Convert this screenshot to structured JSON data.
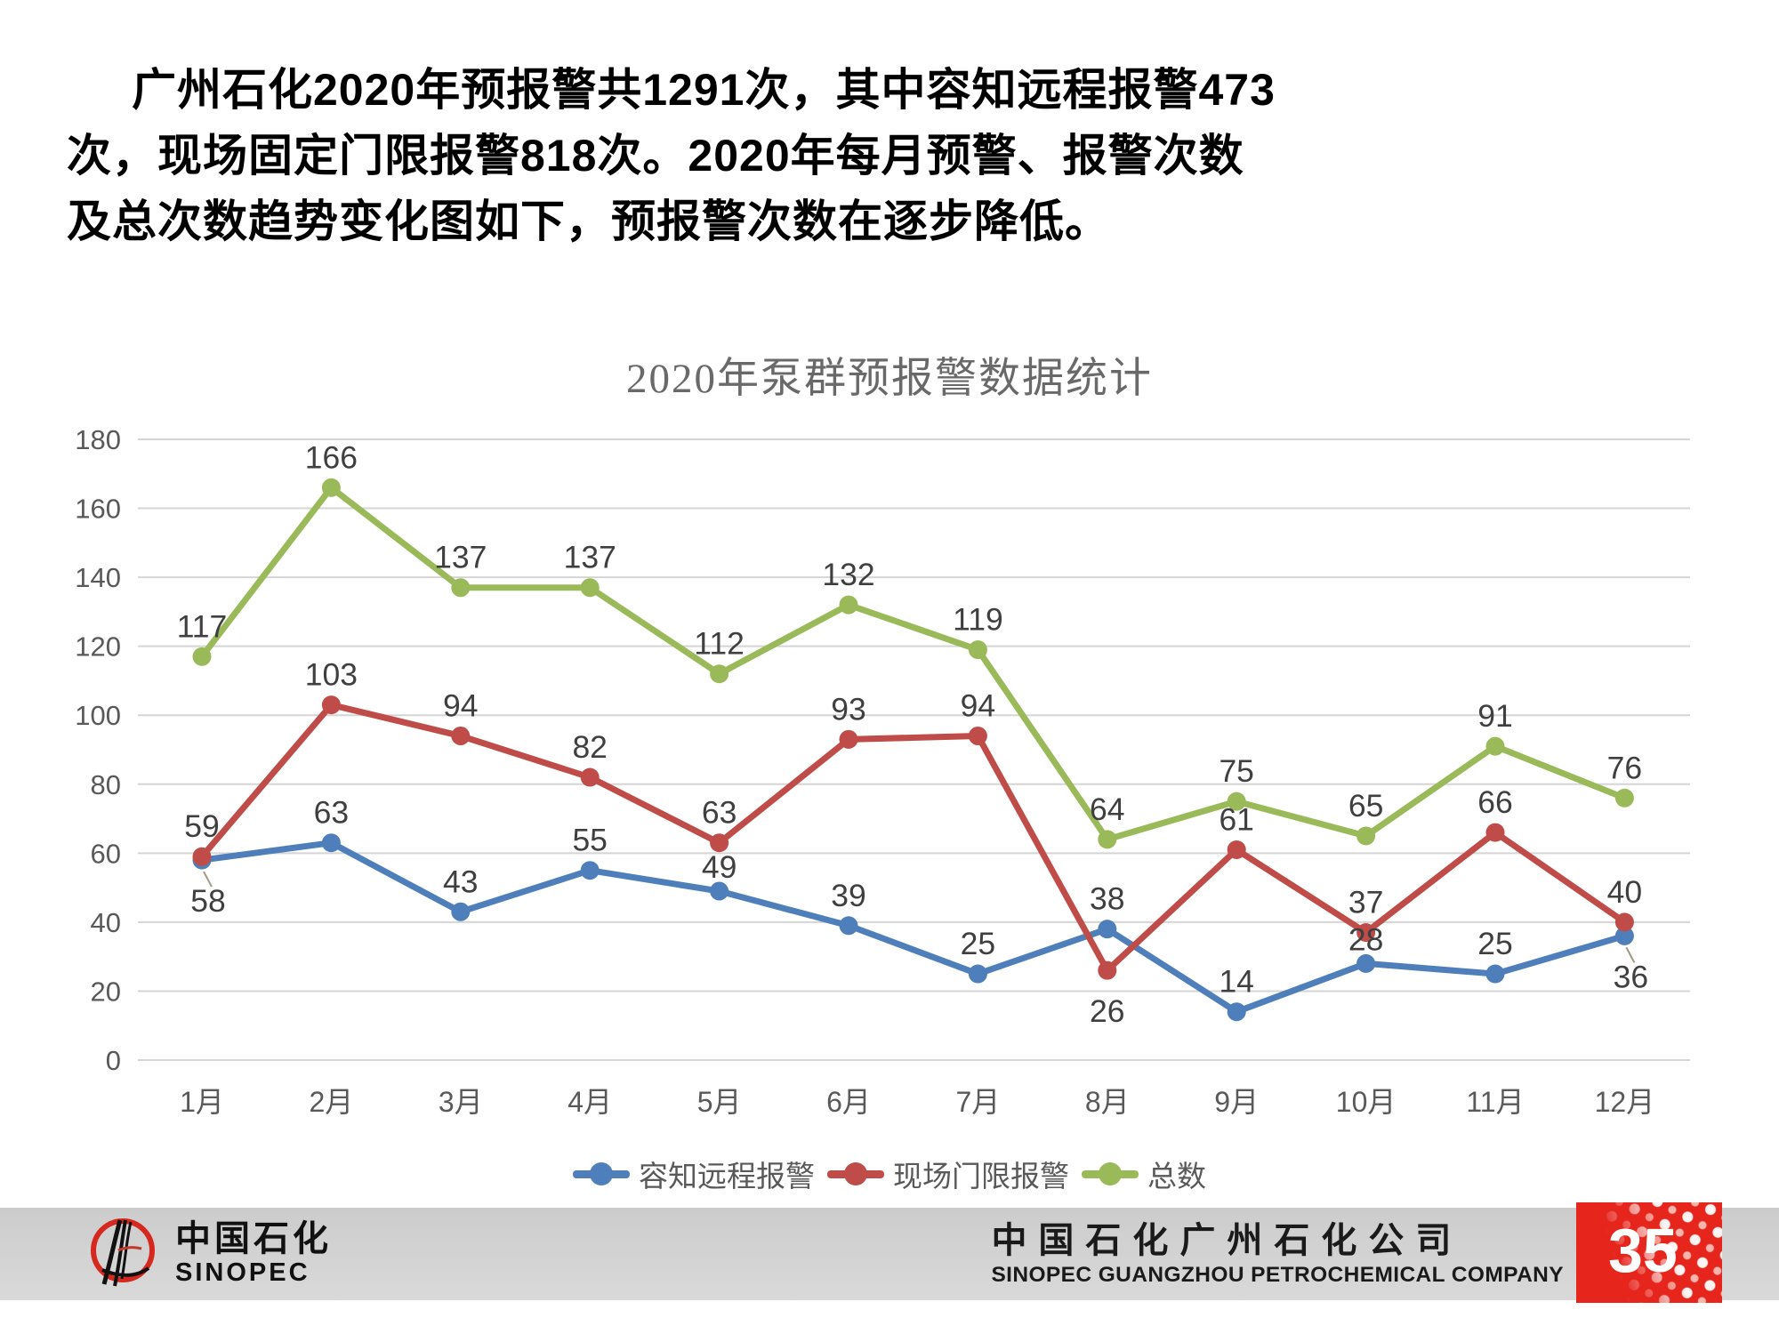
{
  "slide": {
    "heading_lines": [
      "广州石化2020年预报警共1291次，其中容知远程报警473",
      "次，现场固定门限报警818次。2020年每月预警、报警次数",
      "及总次数趋势变化图如下，预报警次数在逐步降低。"
    ]
  },
  "chart_data": {
    "type": "line",
    "title": "2020年泵群预报警数据统计",
    "categories": [
      "1月",
      "2月",
      "3月",
      "4月",
      "5月",
      "6月",
      "7月",
      "8月",
      "9月",
      "10月",
      "11月",
      "12月"
    ],
    "series": [
      {
        "name": "容知远程报警",
        "color": "#4e7fba",
        "values": [
          58,
          63,
          43,
          55,
          49,
          39,
          25,
          38,
          14,
          28,
          25,
          36
        ],
        "label_side": [
          "below-leader",
          "above",
          "above",
          "above",
          "tight",
          "above",
          "above",
          "above",
          "above",
          "tight",
          "above",
          "below-leader"
        ]
      },
      {
        "name": "现场门限报警",
        "color": "#bf4c48",
        "values": [
          59,
          103,
          94,
          82,
          63,
          93,
          94,
          26,
          61,
          37,
          66,
          40
        ],
        "label_side": [
          "above",
          "above",
          "above",
          "above",
          "above",
          "above",
          "above",
          "below",
          "above",
          "above",
          "above",
          "above"
        ]
      },
      {
        "name": "总数",
        "color": "#9aba59",
        "values": [
          117,
          166,
          137,
          137,
          112,
          132,
          119,
          64,
          75,
          65,
          91,
          76
        ],
        "label_side": [
          "above",
          "above",
          "above",
          "above",
          "above",
          "above",
          "above",
          "above",
          "above",
          "above",
          "above",
          "above"
        ]
      }
    ],
    "ylim": [
      0,
      180
    ],
    "ytick_step": 20,
    "grid": true,
    "legend_position": "bottom",
    "gridline_color": "#d5d5d5",
    "axis_label_color": "#595959",
    "data_label_color": "#3f3f3f"
  },
  "footer": {
    "logo_cn": "中国石化",
    "logo_en": "SINOPEC",
    "company_cn": "中国石化广州石化公司",
    "company_en": "SINOPEC GUANGZHOU PETROCHEMICAL COMPANY",
    "page_number": "35",
    "accent_red": "#e6251d"
  }
}
